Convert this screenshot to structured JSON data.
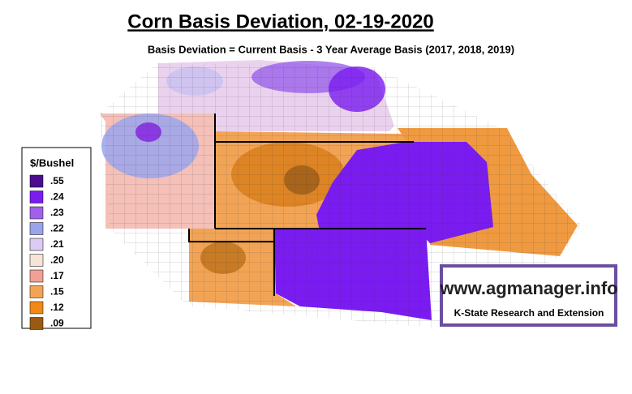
{
  "title": "Corn Basis Deviation, 02-19-2020",
  "subtitle": "Basis Deviation = Current Basis - 3 Year Average Basis (2017, 2018, 2019)",
  "legend": {
    "title": "$/Bushel",
    "items": [
      {
        "label": ".55",
        "color": "#4a0e8f"
      },
      {
        "label": ".24",
        "color": "#7a1cf0"
      },
      {
        "label": ".23",
        "color": "#a060ea"
      },
      {
        "label": ".22",
        "color": "#9aa4ec"
      },
      {
        "label": ".21",
        "color": "#dccbf2"
      },
      {
        "label": ".20",
        "color": "#f7e3d8"
      },
      {
        "label": ".17",
        "color": "#f0a094"
      },
      {
        "label": ".15",
        "color": "#f2a456"
      },
      {
        "label": ".12",
        "color": "#ef8a18"
      },
      {
        "label": ".09",
        "color": "#9a5a14"
      }
    ]
  },
  "logo": {
    "url": "www.agmanager.info",
    "org": "K-State Research and Extension"
  }
}
